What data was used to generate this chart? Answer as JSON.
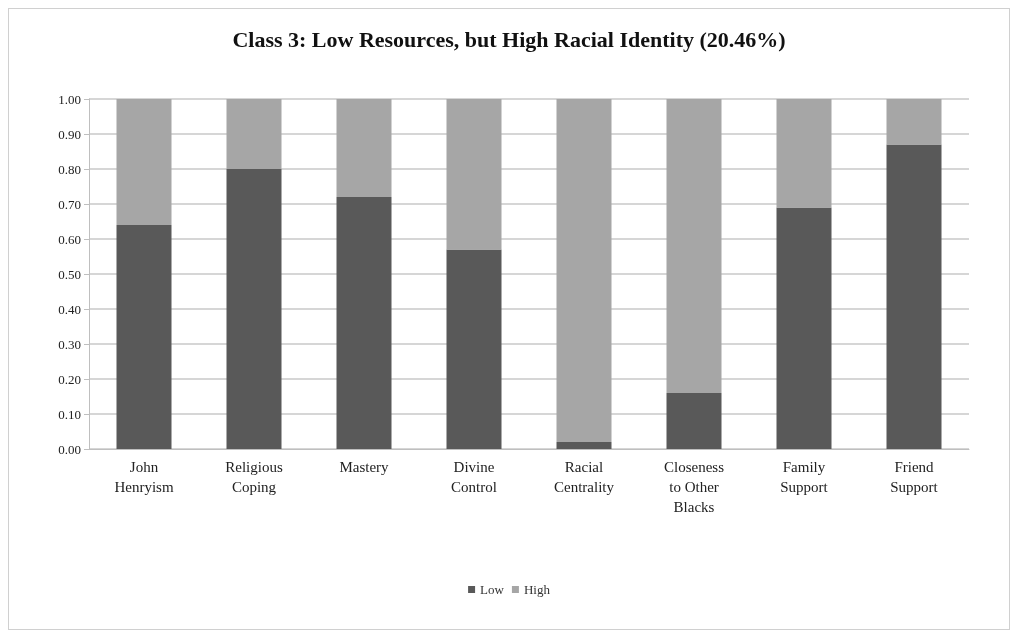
{
  "chart_data": {
    "type": "bar",
    "title": "Class 3: Low Resources, but High Racial Identity (20.46%)",
    "categories": [
      "John Henryism",
      "Religious Coping",
      "Mastery",
      "Divine Control",
      "Racial Centrality",
      "Closeness to Other Blacks",
      "Family Support",
      "Friend Support"
    ],
    "series": [
      {
        "name": "Low",
        "color": "#595959",
        "values": [
          0.64,
          0.8,
          0.72,
          0.57,
          0.02,
          0.16,
          0.69,
          0.87
        ]
      },
      {
        "name": "High",
        "color": "#a6a6a6",
        "values": [
          0.36,
          0.2,
          0.28,
          0.43,
          0.98,
          0.84,
          0.31,
          0.13
        ]
      }
    ],
    "stacked": true,
    "ylim": [
      0,
      1
    ],
    "yticks": [
      {
        "value": 0,
        "label": "0.00"
      },
      {
        "value": 0.1,
        "label": "0.10"
      },
      {
        "value": 0.2,
        "label": "0.20"
      },
      {
        "value": 0.3,
        "label": "0.30"
      },
      {
        "value": 0.4,
        "label": "0.40"
      },
      {
        "value": 0.5,
        "label": "0.50"
      },
      {
        "value": 0.6,
        "label": "0.60"
      },
      {
        "value": 0.7,
        "label": "0.70"
      },
      {
        "value": 0.8,
        "label": "0.80"
      },
      {
        "value": 0.9,
        "label": "0.90"
      },
      {
        "value": 1,
        "label": "1.00"
      }
    ],
    "grid": "y",
    "legend": "bottom"
  }
}
